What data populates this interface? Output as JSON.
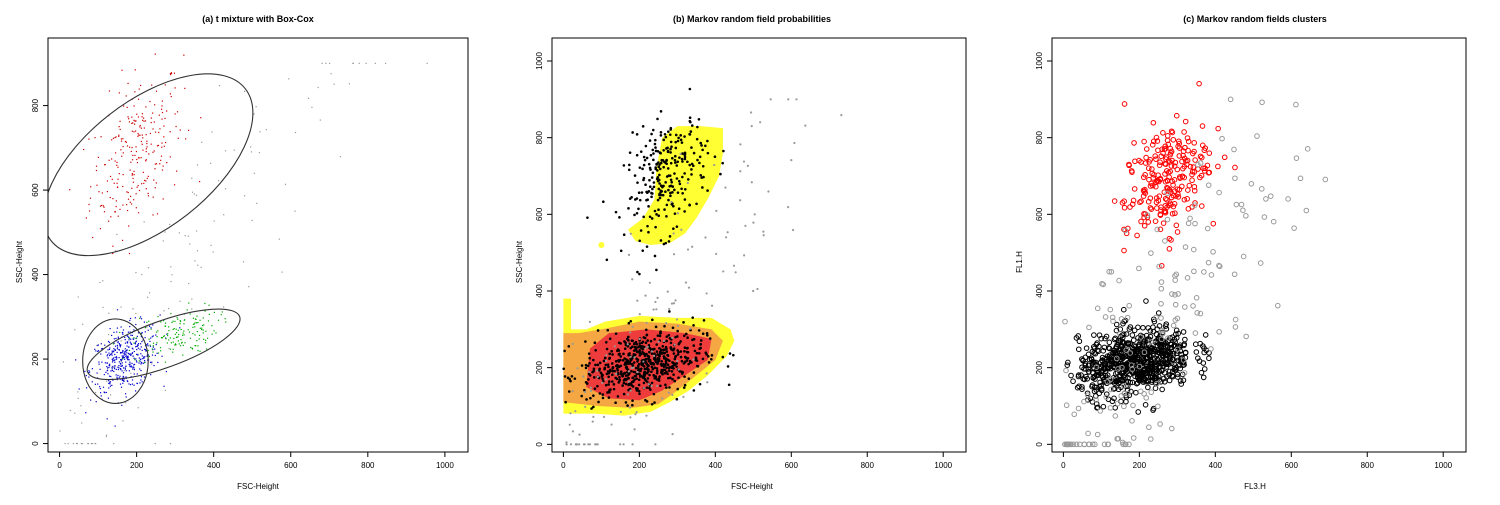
{
  "chart_data": [
    {
      "type": "scatter",
      "title": "(a) t mixture with Box-Cox",
      "xlabel": "FSC-Height",
      "ylabel": "SSC-Height",
      "xticks": [
        0,
        200,
        400,
        600,
        800,
        1000
      ],
      "yticks": [
        0,
        200,
        400,
        600,
        800
      ],
      "xlim": [
        -30,
        1060
      ],
      "ylim": [
        -20,
        960
      ],
      "grid": false,
      "series": [
        {
          "color": "#cc0000",
          "cluster": {
            "cx": 200,
            "cy": 690,
            "sx": 60,
            "sy": 95,
            "rho": 0.4,
            "n": 260
          }
        },
        {
          "color": "#0000cc",
          "cluster": {
            "cx": 170,
            "cy": 200,
            "sx": 45,
            "sy": 40,
            "rho": 0.35,
            "n": 420
          }
        },
        {
          "color": "#00aa00",
          "cluster": {
            "cx": 300,
            "cy": 260,
            "sx": 55,
            "sy": 30,
            "rho": 0.35,
            "n": 160
          }
        },
        {
          "color": "#999999",
          "scatter_range": {
            "x": [
              0,
              1020
            ],
            "y": [
              0,
              900
            ],
            "n": 140
          }
        }
      ],
      "ellipses": [
        {
          "cx": 230,
          "cy": 660,
          "rx": 320,
          "ry": 150,
          "angle_deg": 38
        },
        {
          "cx": 145,
          "cy": 195,
          "rx": 85,
          "ry": 100,
          "angle_deg": 0
        },
        {
          "cx": 270,
          "cy": 235,
          "rx": 210,
          "ry": 55,
          "angle_deg": 20
        }
      ]
    },
    {
      "type": "scatter",
      "title": "(b) Markov random field probabilities",
      "xlabel": "FSC-Height",
      "ylabel": "SSC-Height",
      "xticks": [
        0,
        200,
        400,
        600,
        800,
        1000
      ],
      "yticks": [
        0,
        200,
        400,
        600,
        800,
        1000
      ],
      "xlim": [
        -30,
        1060
      ],
      "ylim": [
        -20,
        1060
      ],
      "grid": false,
      "probability_regions": {
        "yellow": "#ffff33",
        "orange": "#f4a742",
        "red": "#ee3b3b"
      },
      "series": [
        {
          "color": "#000000",
          "cluster": {
            "cx": 270,
            "cy": 700,
            "sx": 55,
            "sy": 80,
            "rho": 0.4,
            "n": 260
          }
        },
        {
          "color": "#000000",
          "cluster": {
            "cx": 210,
            "cy": 210,
            "sx": 80,
            "sy": 45,
            "rho": 0.3,
            "n": 600
          }
        },
        {
          "color": "#999999",
          "scatter_range": {
            "x": [
              0,
              740
            ],
            "y": [
              0,
              900
            ],
            "n": 160
          }
        }
      ]
    },
    {
      "type": "scatter",
      "title": "(c) Markov random fields clusters",
      "xlabel": "FL3.H",
      "ylabel": "FL1.H",
      "xticks": [
        0,
        200,
        400,
        600,
        800,
        1000
      ],
      "yticks": [
        0,
        200,
        400,
        600,
        800,
        1000
      ],
      "xlim": [
        -30,
        1060
      ],
      "ylim": [
        -20,
        1060
      ],
      "grid": false,
      "series": [
        {
          "color": "#ff0000",
          "cluster": {
            "cx": 270,
            "cy": 690,
            "sx": 55,
            "sy": 80,
            "rho": 0.4,
            "n": 230
          }
        },
        {
          "color": "#000000",
          "cluster": {
            "cx": 190,
            "cy": 215,
            "sx": 75,
            "sy": 45,
            "rho": 0.3,
            "n": 700
          }
        },
        {
          "color": "#999999",
          "scatter_range": {
            "x": [
              0,
              740
            ],
            "y": [
              0,
              900
            ],
            "n": 180
          }
        }
      ]
    }
  ]
}
